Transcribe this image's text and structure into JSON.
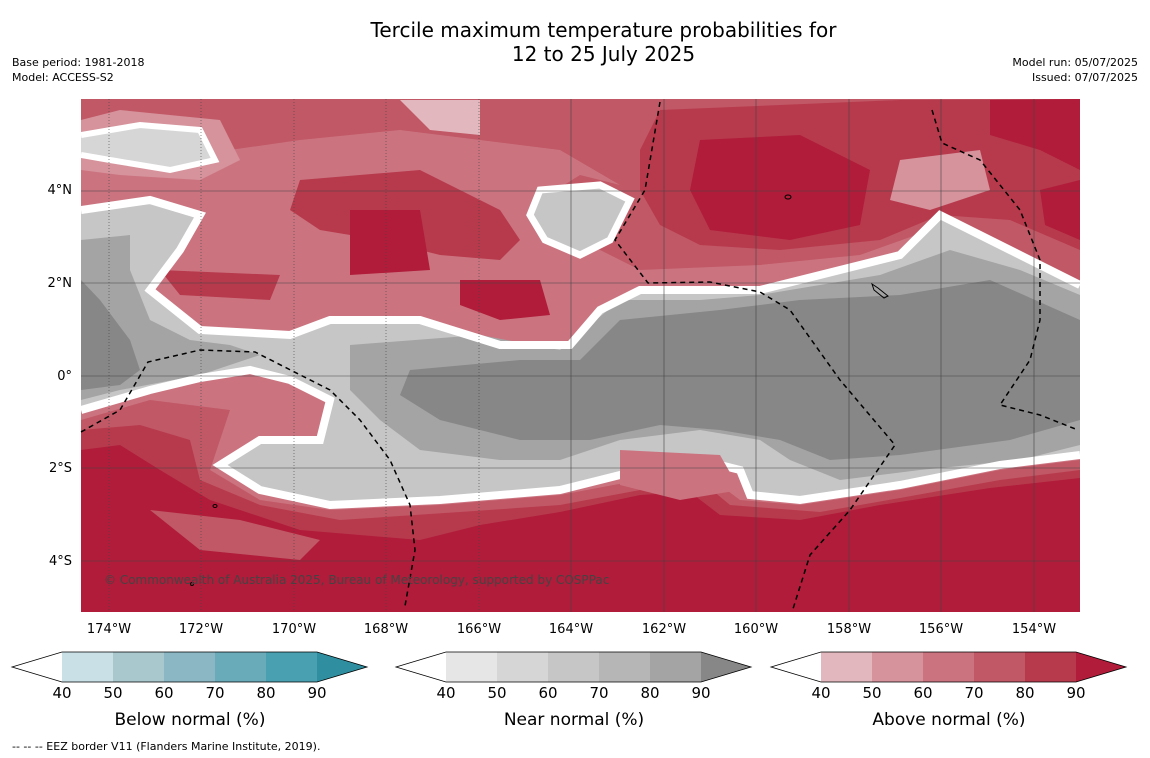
{
  "title_line1": "Tercile maximum temperature probabilities for",
  "title_line2": "12 to 25 July 2025",
  "base_period": "Base period: 1981-2018",
  "model": "Model: ACCESS-S2",
  "model_run": "Model run: 05/07/2025",
  "issued": "Issued: 07/07/2025",
  "lat_labels": [
    "4°N",
    "2°N",
    "0°",
    "2°S",
    "4°S"
  ],
  "lon_labels": [
    "174°W",
    "172°W",
    "170°W",
    "168°W",
    "166°W",
    "164°W",
    "162°W",
    "160°W",
    "158°W",
    "156°W",
    "154°W"
  ],
  "copyright": "© Commonwealth of Australia 2025, Bureau of Meteorology, supported by COSPPac",
  "colorbars": [
    {
      "title": "Below normal (%)",
      "ticks": [
        "40",
        "50",
        "60",
        "70",
        "80",
        "90"
      ],
      "colors": [
        "#ffffff",
        "#c8e0e6",
        "#a8c8cd",
        "#8ab7c3",
        "#6aabba",
        "#49a0b1",
        "#2f8fa0"
      ]
    },
    {
      "title": "Near normal (%)",
      "ticks": [
        "40",
        "50",
        "60",
        "70",
        "80",
        "90"
      ],
      "colors": [
        "#ffffff",
        "#e6e6e6",
        "#d6d6d6",
        "#c6c6c6",
        "#b6b6b6",
        "#a4a4a4",
        "#878787"
      ]
    },
    {
      "title": "Above normal (%)",
      "ticks": [
        "40",
        "50",
        "60",
        "70",
        "80",
        "90"
      ],
      "colors": [
        "#ffffff",
        "#e2b8be",
        "#d6939c",
        "#cb7480",
        "#c15866",
        "#b73a4c",
        "#b01c3a"
      ]
    }
  ],
  "footnote": "--  --  -- EEZ border V11 (Flanders Marine Institute, 2019)."
}
